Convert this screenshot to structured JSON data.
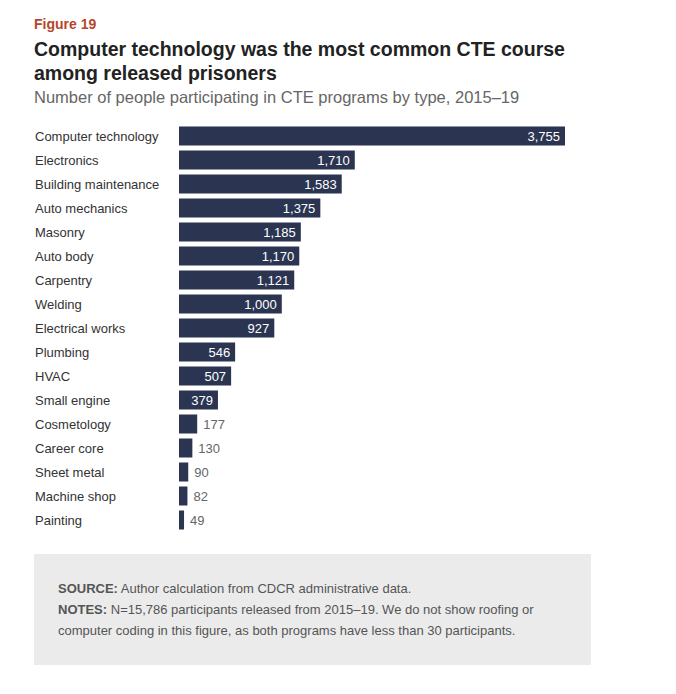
{
  "chart_data": {
    "type": "bar",
    "orientation": "horizontal",
    "figure_label": "Figure 19",
    "title": "Computer technology was the most common CTE course among released prisoners",
    "subtitle": "Number of people participating in CTE programs by type, 2015–19",
    "categories": [
      "Computer technology",
      "Electronics",
      "Building maintenance",
      "Auto mechanics",
      "Masonry",
      "Auto body",
      "Carpentry",
      "Welding",
      "Electrical works",
      "Plumbing",
      "HVAC",
      "Small engine",
      "Cosmetology",
      "Career core",
      "Sheet metal",
      "Machine shop",
      "Painting"
    ],
    "values": [
      3755,
      1710,
      1583,
      1375,
      1185,
      1170,
      1121,
      1000,
      927,
      546,
      507,
      379,
      177,
      130,
      90,
      82,
      49
    ],
    "value_labels": [
      "3,755",
      "1,710",
      "1,583",
      "1,375",
      "1,185",
      "1,170",
      "1,121",
      "1,000",
      "927",
      "546",
      "507",
      "379",
      "177",
      "130",
      "90",
      "82",
      "49"
    ],
    "color": "#2b3552",
    "xlim": [
      0,
      3755
    ],
    "data_labels": true,
    "tick_labels": "y",
    "grid": false,
    "source_label": "SOURCE:",
    "source": "Author calculation from CDCR administrative data.",
    "notes_label": "NOTES:",
    "notes": "N=15,786 participants released from 2015–19. We do not show roofing or computer coding in this figure, as both programs have less than 30 participants."
  }
}
